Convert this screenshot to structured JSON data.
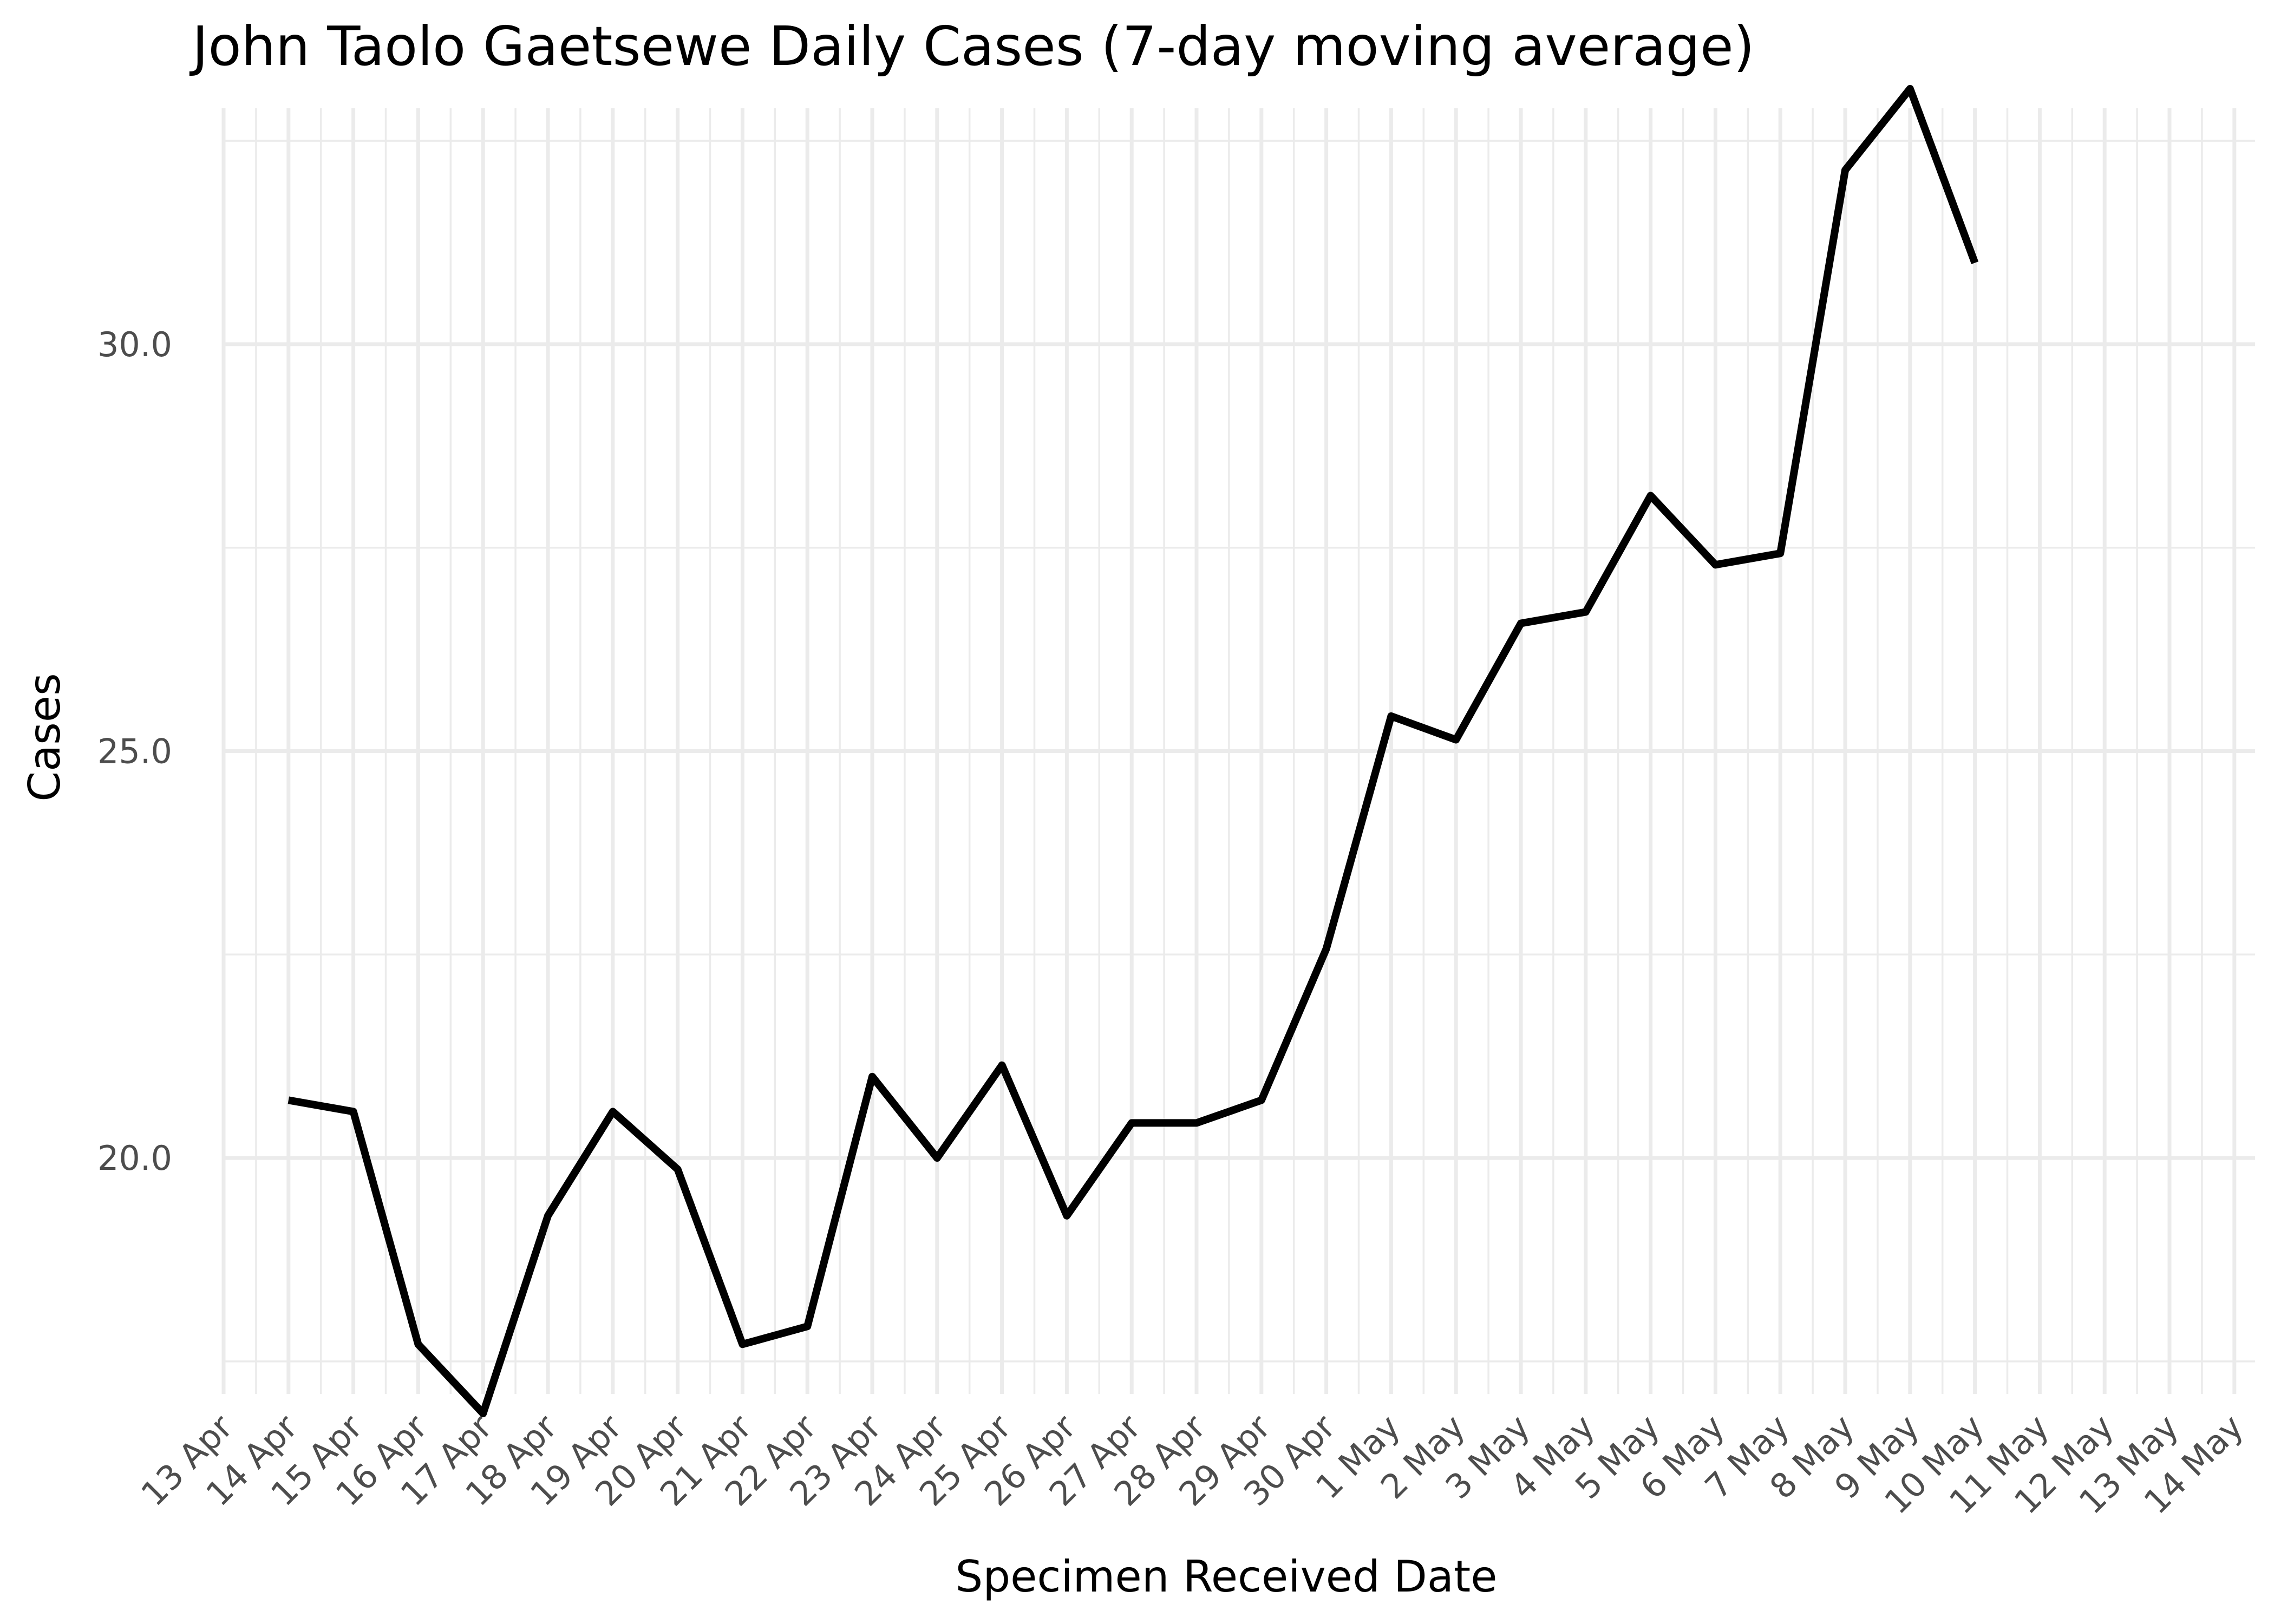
{
  "chart_data": {
    "type": "line",
    "title": "John Taolo Gaetsewe Daily Cases (7-day moving average)",
    "xlabel": "Specimen Received Date",
    "ylabel": "Cases",
    "grid": true,
    "legend": "none",
    "line_color": "#000000",
    "x_ticks": [
      "13 Apr",
      "14 Apr",
      "15 Apr",
      "16 Apr",
      "17 Apr",
      "18 Apr",
      "19 Apr",
      "20 Apr",
      "21 Apr",
      "22 Apr",
      "23 Apr",
      "24 Apr",
      "25 Apr",
      "26 Apr",
      "27 Apr",
      "28 Apr",
      "29 Apr",
      "30 Apr",
      "1 May",
      "2 May",
      "3 May",
      "4 May",
      "5 May",
      "6 May",
      "7 May",
      "8 May",
      "9 May",
      "10 May",
      "11 May",
      "12 May",
      "13 May",
      "14 May"
    ],
    "y_ticks": [
      "20.0",
      "25.0",
      "30.0"
    ],
    "y_tick_values": [
      20,
      25,
      30
    ],
    "ylim": [
      17.1,
      32.9
    ],
    "x": [
      "14 Apr",
      "15 Apr",
      "16 Apr",
      "17 Apr",
      "18 Apr",
      "19 Apr",
      "20 Apr",
      "21 Apr",
      "22 Apr",
      "23 Apr",
      "24 Apr",
      "25 Apr",
      "26 Apr",
      "27 Apr",
      "28 Apr",
      "29 Apr",
      "30 Apr",
      "1 May",
      "2 May",
      "3 May",
      "4 May",
      "5 May",
      "6 May",
      "7 May",
      "8 May",
      "9 May",
      "10 May"
    ],
    "values": [
      20.71,
      20.57,
      17.71,
      16.86,
      19.29,
      20.57,
      19.86,
      17.71,
      17.93,
      21.0,
      20.0,
      21.14,
      19.29,
      20.43,
      20.43,
      20.71,
      22.57,
      25.43,
      25.14,
      26.57,
      26.71,
      28.14,
      27.29,
      27.43,
      32.14,
      33.14,
      31.0
    ]
  }
}
